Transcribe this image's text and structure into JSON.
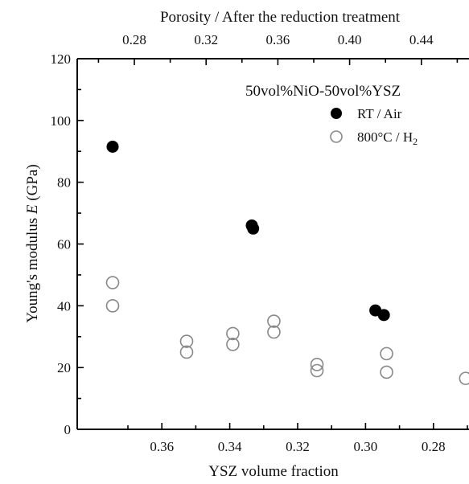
{
  "chart_data": {
    "type": "scatter",
    "annotation": "50vol%NiO-50vol%YSZ",
    "xlabel": "YSZ volume fraction",
    "x2label": "Porosity / After the reduction treatment",
    "ylabel": "Young's modulus E (GPa)",
    "xlim": [
      0.378,
      0.27
    ],
    "ylim": [
      0,
      120
    ],
    "x_ticks": [
      "0.36",
      "0.34",
      "0.32",
      "0.30",
      "0.28"
    ],
    "x2_ticks": [
      "0.28",
      "0.32",
      "0.36",
      "0.40",
      "0.44"
    ],
    "y_ticks": [
      "0",
      "20",
      "40",
      "60",
      "80",
      "100",
      "120"
    ],
    "series": [
      {
        "name": "RT / Air",
        "marker": "filled-circle",
        "color": "#000000",
        "points": [
          {
            "x": 0.3745,
            "y": 91.5
          },
          {
            "x": 0.3335,
            "y": 66.0
          },
          {
            "x": 0.3331,
            "y": 65.0
          },
          {
            "x": 0.2971,
            "y": 38.5
          },
          {
            "x": 0.2946,
            "y": 37.0
          }
        ]
      },
      {
        "name": "800°C / H2",
        "marker": "open-circle",
        "color": "#888888",
        "points": [
          {
            "x": 0.3745,
            "y": 47.5
          },
          {
            "x": 0.3745,
            "y": 40.0
          },
          {
            "x": 0.3527,
            "y": 28.5
          },
          {
            "x": 0.3527,
            "y": 25.0
          },
          {
            "x": 0.3391,
            "y": 31.0
          },
          {
            "x": 0.3391,
            "y": 27.5
          },
          {
            "x": 0.327,
            "y": 35.0
          },
          {
            "x": 0.327,
            "y": 31.5
          },
          {
            "x": 0.3143,
            "y": 21.0
          },
          {
            "x": 0.3143,
            "y": 19.0
          },
          {
            "x": 0.2938,
            "y": 24.5
          },
          {
            "x": 0.2938,
            "y": 18.5
          },
          {
            "x": 0.2705,
            "y": 16.5
          }
        ]
      }
    ]
  }
}
